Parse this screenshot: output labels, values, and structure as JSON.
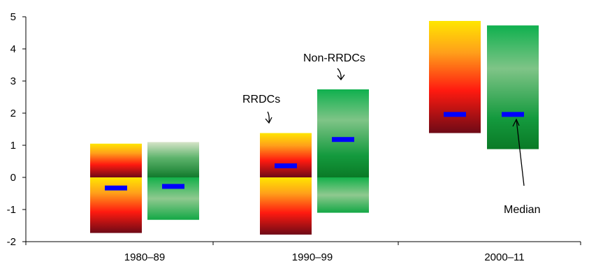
{
  "chart_data": {
    "type": "range-bar",
    "title": "",
    "xlabel": "",
    "ylabel": "",
    "ylim": [
      -2,
      5
    ],
    "yticks": [
      "5",
      "4",
      "3",
      "2",
      "1",
      "0",
      "-1",
      "-2"
    ],
    "categories": [
      "1980–89",
      "1990–99",
      "2000–11"
    ],
    "series": [
      {
        "name": "RRDCs",
        "color": "#e8201c",
        "low": [
          -1.73,
          -1.78,
          1.38
        ],
        "high": [
          1.05,
          1.38,
          4.87
        ],
        "median": [
          -0.33,
          0.36,
          1.96
        ]
      },
      {
        "name": "Non-RRDCs",
        "color": "#1f9e4a",
        "low": [
          -1.32,
          -1.1,
          0.88
        ],
        "high": [
          1.1,
          2.74,
          4.73
        ],
        "median": [
          -0.28,
          1.18,
          1.96
        ]
      }
    ],
    "median_color": "#0000ff",
    "annotations": {
      "rrdcs": "RRDCs",
      "non_rrdcs": "Non-RRDCs",
      "median": "Median"
    },
    "grid": false,
    "legend": "none"
  }
}
